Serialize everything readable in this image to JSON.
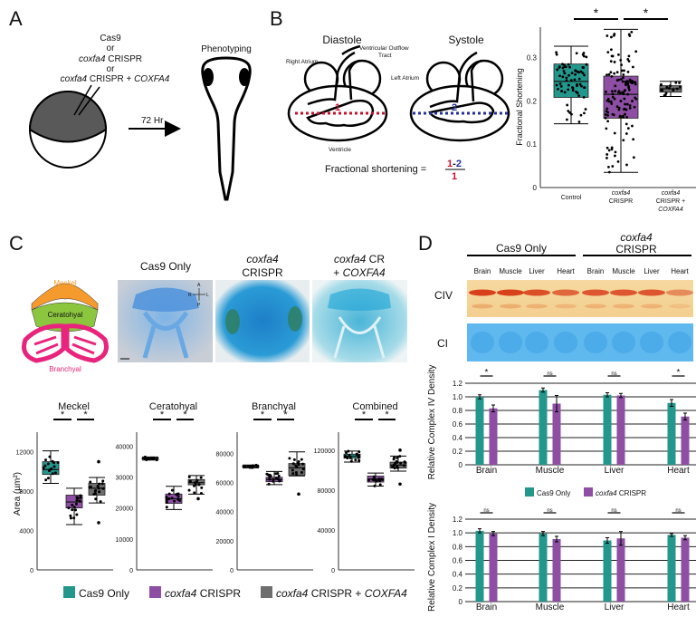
{
  "panel_labels": {
    "a": "A",
    "b": "B",
    "c": "C",
    "d": "D"
  },
  "panel_a": {
    "cas9": "Cas9",
    "or": "or",
    "gene": "coxfa4",
    "crispr": "CRISPR",
    "crispr_plus": "CRISPR +",
    "rescue": "COXFA4",
    "time": "72 Hr",
    "phenotyping": "Phenotyping"
  },
  "panel_b": {
    "diastole": "Diastole",
    "systole": "Systole",
    "right_atrium": "Right Atrium",
    "outflow_1": "Ventricular Outflow",
    "outflow_2": "Tract",
    "left_atrium": "Left Atrium",
    "ventricle": "Ventricle",
    "d1": "1",
    "d2": "2",
    "formula": "Fractional shortening =",
    "num_a": "1",
    "minus": "-",
    "num_b": "2",
    "den": "1"
  },
  "panel_c": {
    "meckel": "Meckel",
    "ceratohyal": "Ceratohyal",
    "branchyal": "Branchyal",
    "photo_1": "Cas9 Only",
    "photo_2_gene": "coxfa4",
    "photo_2": "CRISPR",
    "photo_3_gene": "coxfa4",
    "photo_3_cr": "CR",
    "photo_3_plus": "+",
    "photo_3_rescue": "COXFA4",
    "orient": {
      "a": "A",
      "r": "R",
      "l": "L",
      "p": "P"
    },
    "ylabel": "Area (µm²)",
    "legend": {
      "cas9": "Cas9 Only",
      "gene": "coxfa4",
      "crispr": "CRISPR",
      "crispr_plus": "CRISPR +",
      "rescue": "COXFA4"
    }
  },
  "panel_d": {
    "group_1": "Cas9 Only",
    "group_2_gene": "coxfa4",
    "group_2": "CRISPR",
    "lanes": [
      "Brain",
      "Muscle",
      "Liver",
      "Heart",
      "Brain",
      "Muscle",
      "Liver",
      "Heart"
    ],
    "civ": "CIV",
    "ci": "CI",
    "legend": {
      "cas9": "Cas9 Only",
      "gene": "coxfa4",
      "crispr": "CRISPR"
    }
  },
  "colors": {
    "cas9": "#23978c",
    "crispr": "#8d4ea4",
    "rescue": "#6e6e6e",
    "red": "#c8102e",
    "blue": "#24309a",
    "meckel": "#f59a2c",
    "ceratohyal": "#8cc63f",
    "branchyal": "#e8247c"
  },
  "chart_data": [
    {
      "id": "fractional_shortening",
      "type": "box",
      "ylabel": "Fractional Shortening",
      "categories": [
        "Control",
        "coxfa4 CRISPR",
        "coxfa4 CRISPR + COXFA4"
      ],
      "ylim": [
        0,
        0.37
      ],
      "yticks": [
        0,
        0.1,
        0.2,
        0.3
      ],
      "ytick_labels": [
        "0",
        "0.1",
        "0.2",
        "0.3"
      ],
      "boxes": [
        {
          "min": 0.147,
          "q1": 0.208,
          "median": 0.245,
          "q3": 0.285,
          "max": 0.326,
          "n": 70
        },
        {
          "min": 0.035,
          "q1": 0.16,
          "median": 0.215,
          "q3": 0.257,
          "max": 0.365,
          "n": 130
        },
        {
          "min": 0.21,
          "q1": 0.22,
          "median": 0.228,
          "q3": 0.235,
          "max": 0.245,
          "n": 16
        }
      ],
      "significance": [
        {
          "from": 0,
          "to": 1,
          "label": "*"
        },
        {
          "from": 1,
          "to": 2,
          "label": "*"
        }
      ]
    },
    {
      "id": "meckel",
      "type": "box",
      "title": "Meckel",
      "ylabel": "Area (µm²)",
      "categories": [
        "Cas9 Only",
        "coxfa4 CRISPR",
        "coxfa4 CRISPR + COXFA4"
      ],
      "ylim": [
        0,
        14000
      ],
      "yticks": [
        0,
        4000,
        8000,
        12000
      ],
      "ytick_labels": [
        "0",
        "4000",
        "8000",
        "12000"
      ],
      "boxes": [
        {
          "min": 8800,
          "q1": 9700,
          "median": 10200,
          "q3": 11000,
          "max": 12100,
          "n": 16
        },
        {
          "min": 4600,
          "q1": 6300,
          "median": 6900,
          "q3": 7600,
          "max": 8300,
          "n": 16
        },
        {
          "min": 6800,
          "q1": 7600,
          "median": 8300,
          "q3": 8800,
          "max": 9400,
          "n": 16,
          "outliers": [
            11000,
            4800
          ]
        }
      ],
      "significance": [
        {
          "from": 0,
          "to": 1,
          "label": "*"
        },
        {
          "from": 1,
          "to": 2,
          "label": "*"
        }
      ]
    },
    {
      "id": "ceratohyal",
      "type": "box",
      "title": "Ceratohyal",
      "categories": [
        "Cas9 Only",
        "coxfa4 CRISPR",
        "coxfa4 CRISPR + COXFA4"
      ],
      "ylim": [
        0,
        44500
      ],
      "yticks": [
        0,
        10000,
        20000,
        30000,
        40000
      ],
      "ytick_labels": [
        "0",
        "10000",
        "20000",
        "30000",
        "40000"
      ],
      "boxes": [
        {
          "min": 35500,
          "q1": 35800,
          "median": 36000,
          "q3": 36200,
          "max": 36500,
          "n": 14
        },
        {
          "min": 19500,
          "q1": 21500,
          "median": 23000,
          "q3": 24500,
          "max": 27000,
          "n": 16
        },
        {
          "min": 24500,
          "q1": 27500,
          "median": 28200,
          "q3": 29200,
          "max": 30500,
          "n": 16,
          "outliers": [
            23000
          ]
        }
      ],
      "significance": [
        {
          "from": 0,
          "to": 1,
          "label": "*"
        },
        {
          "from": 1,
          "to": 2,
          "label": "*"
        }
      ]
    },
    {
      "id": "branchyal",
      "type": "box",
      "title": "Branchyal",
      "categories": [
        "Cas9 Only",
        "coxfa4 CRISPR",
        "coxfa4 CRISPR + COXFA4"
      ],
      "ylim": [
        0,
        94500
      ],
      "yticks": [
        0,
        20000,
        40000,
        60000,
        80000
      ],
      "ytick_labels": [
        "0",
        "20000",
        "40000",
        "60000",
        "80000"
      ],
      "boxes": [
        {
          "min": 70000,
          "q1": 70500,
          "median": 71000,
          "q3": 71500,
          "max": 72000,
          "n": 14
        },
        {
          "min": 58500,
          "q1": 60500,
          "median": 62000,
          "q3": 63500,
          "max": 67500,
          "n": 16
        },
        {
          "min": 64500,
          "q1": 65000,
          "median": 70000,
          "q3": 73000,
          "max": 81000,
          "n": 16,
          "outliers": [
            52000
          ]
        }
      ],
      "significance": [
        {
          "from": 0,
          "to": 1,
          "label": "*"
        },
        {
          "from": 1,
          "to": 2,
          "label": "*"
        }
      ]
    },
    {
      "id": "combined",
      "type": "box",
      "title": "Combined",
      "categories": [
        "Cas9 Only",
        "coxfa4 CRISPR",
        "coxfa4 CRISPR + COXFA4"
      ],
      "ylim": [
        0,
        138000
      ],
      "yticks": [
        0,
        40000,
        80000,
        120000
      ],
      "ytick_labels": [
        "0",
        "40000",
        "80000",
        "120000"
      ],
      "boxes": [
        {
          "min": 108000,
          "q1": 112000,
          "median": 114000,
          "q3": 116000,
          "max": 119000,
          "n": 16
        },
        {
          "min": 84000,
          "q1": 88000,
          "median": 91000,
          "q3": 94000,
          "max": 97000,
          "n": 16
        },
        {
          "min": 99000,
          "q1": 102000,
          "median": 105000,
          "q3": 108000,
          "max": 114000,
          "n": 16,
          "outliers": [
            86000,
            120000
          ]
        }
      ],
      "significance": [
        {
          "from": 0,
          "to": 1,
          "label": "*"
        },
        {
          "from": 1,
          "to": 2,
          "label": "*"
        }
      ]
    },
    {
      "id": "complex_iv",
      "type": "bar",
      "ylabel": "Relative Complex IV Density",
      "categories": [
        "Brain",
        "Muscle",
        "Liver",
        "Heart"
      ],
      "ylim": [
        0,
        1.2
      ],
      "yticks": [
        0,
        0.2,
        0.4,
        0.6,
        0.8,
        1.0,
        1.2
      ],
      "ytick_labels": [
        "0",
        "0.2",
        "0.4",
        "0.6",
        "0.8",
        "1.0",
        "1.2"
      ],
      "series": [
        {
          "name": "Cas9 Only",
          "values": [
            1.0,
            1.1,
            1.03,
            0.91
          ],
          "errors": [
            0.03,
            0.03,
            0.03,
            0.05
          ]
        },
        {
          "name": "coxfa4 CRISPR",
          "values": [
            0.83,
            0.9,
            1.02,
            0.71
          ],
          "errors": [
            0.05,
            0.12,
            0.03,
            0.05
          ]
        }
      ],
      "significance": [
        "*",
        "ns",
        "ns",
        "*"
      ]
    },
    {
      "id": "complex_i",
      "type": "bar",
      "ylabel": "Relative Complex I Density",
      "categories": [
        "Brain",
        "Muscle",
        "Liver",
        "Heart"
      ],
      "ylim": [
        0,
        1.2
      ],
      "yticks": [
        0,
        0.2,
        0.4,
        0.6,
        0.8,
        1.0,
        1.2
      ],
      "ytick_labels": [
        "0",
        "0.2",
        "0.4",
        "0.6",
        "0.8",
        "1.0",
        "1.2"
      ],
      "series": [
        {
          "name": "Cas9 Only",
          "values": [
            1.03,
            0.99,
            0.89,
            0.97
          ],
          "errors": [
            0.03,
            0.03,
            0.04,
            0.02
          ]
        },
        {
          "name": "coxfa4 CRISPR",
          "values": [
            0.99,
            0.91,
            0.92,
            0.93
          ],
          "errors": [
            0.03,
            0.04,
            0.1,
            0.03
          ]
        }
      ],
      "significance": [
        "ns",
        "ns",
        "ns",
        "ns"
      ]
    }
  ]
}
